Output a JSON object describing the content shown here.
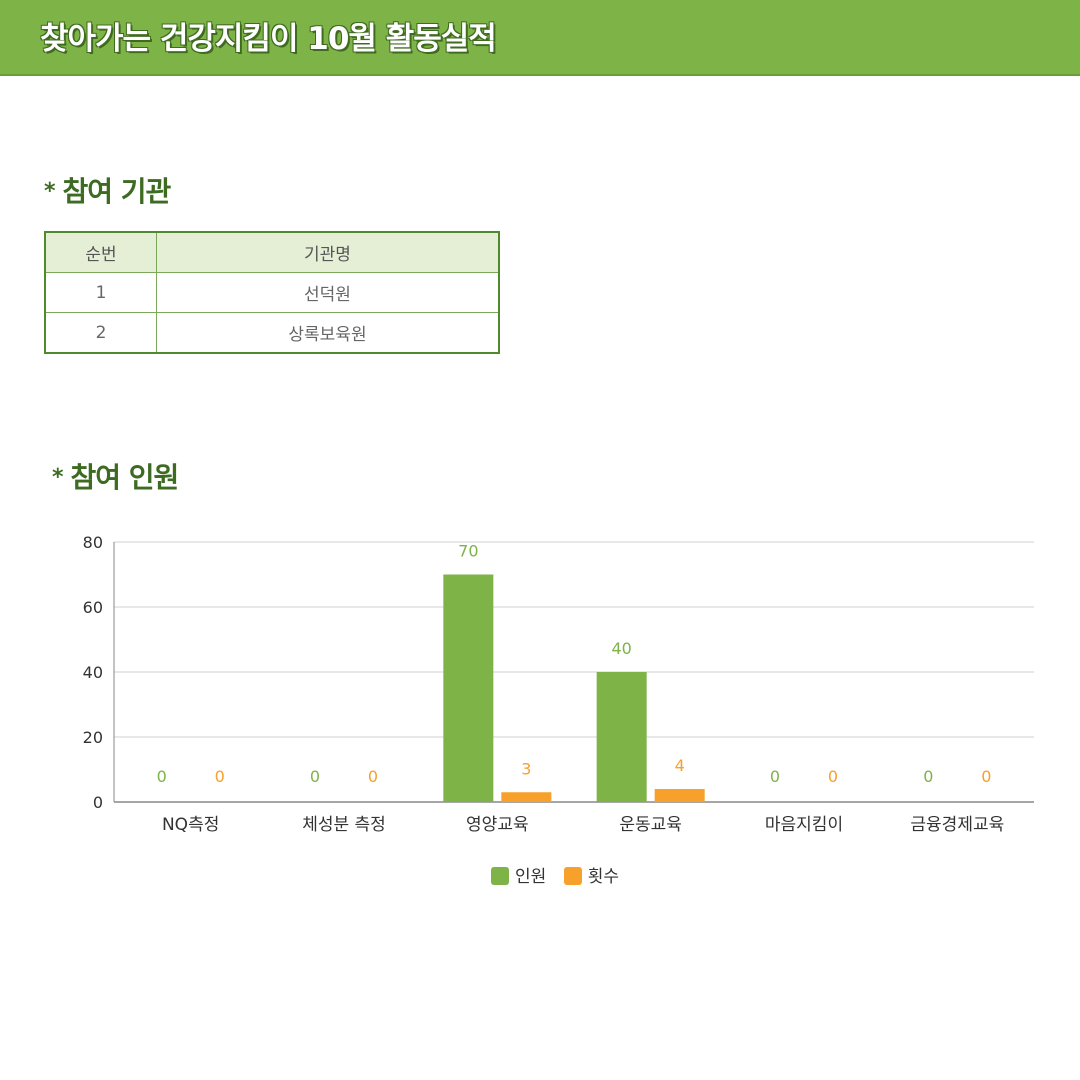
{
  "banner": {
    "title": "찾아가는 건강지킴이 10월 활동실적"
  },
  "sections": {
    "institutions_heading": "참여 기관",
    "participants_heading": "참여 인원",
    "bullet": "*"
  },
  "institutions_table": {
    "headers": [
      "순번",
      "기관명"
    ],
    "rows": [
      [
        "1",
        "선덕원"
      ],
      [
        "2",
        "상록보육원"
      ]
    ]
  },
  "colors": {
    "banner": "#7db347",
    "heading": "#3d6b22",
    "series_people": "#7db347",
    "series_count": "#f7a02c"
  },
  "chart_data": {
    "type": "bar",
    "categories": [
      "NQ측정",
      "체성분 측정",
      "영양교육",
      "운동교육",
      "마음지킴이",
      "금융경제교육"
    ],
    "series": [
      {
        "name": "인원",
        "values": [
          0,
          0,
          70,
          40,
          0,
          0
        ],
        "color": "#7db347"
      },
      {
        "name": "횟수",
        "values": [
          0,
          0,
          3,
          4,
          0,
          0
        ],
        "color": "#f7a02c"
      }
    ],
    "yticks": [
      0,
      20,
      40,
      60,
      80
    ],
    "ylim": [
      0,
      80
    ],
    "grid": true,
    "legend": "bottom-center",
    "data_labels": true
  }
}
